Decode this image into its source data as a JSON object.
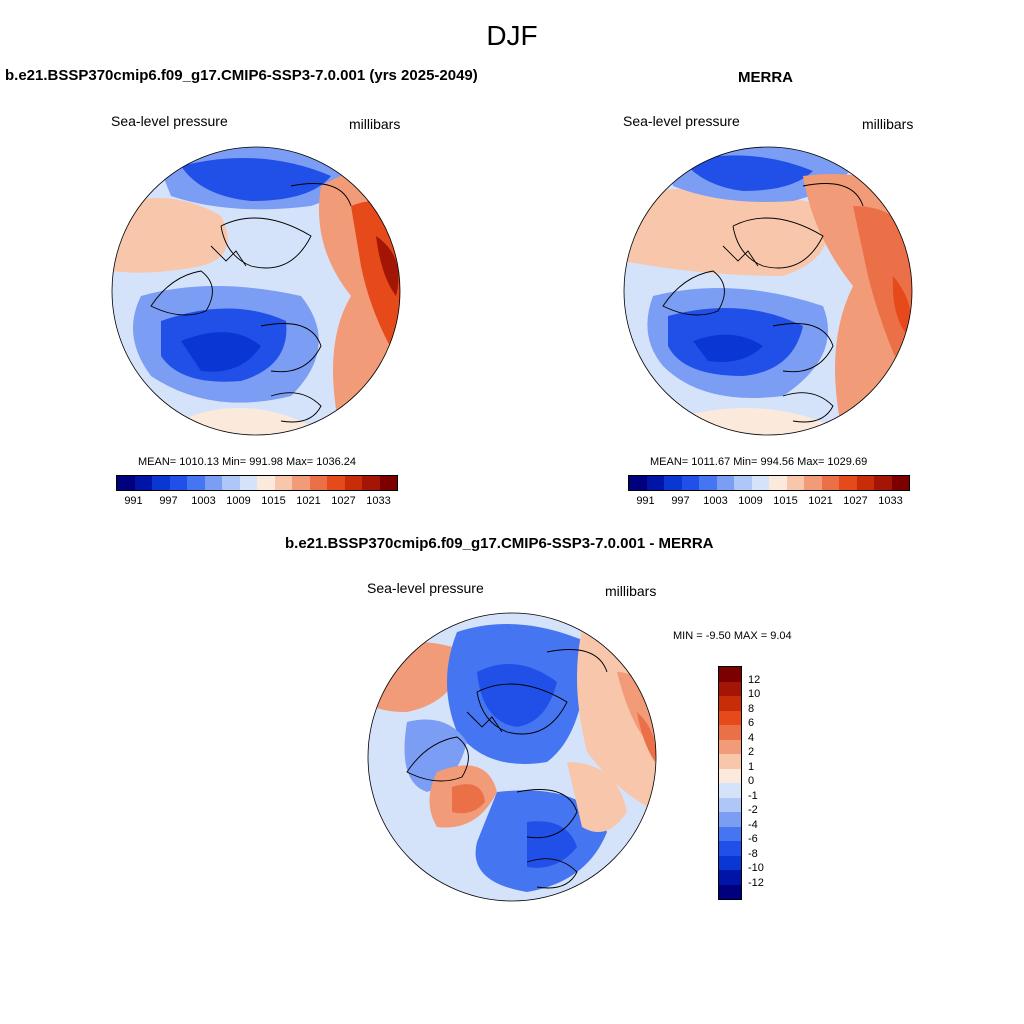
{
  "season": "DJF",
  "panels": {
    "model": {
      "title": "b.e21.BSSP370cmip6.f09_g17.CMIP6-SSP3-7.0.001 (yrs 2025-2049)",
      "left_label": "Sea-level pressure",
      "right_label": "millibars",
      "stats": "MEAN= 1010.13  Min= 991.98  Max= 1036.24"
    },
    "obs": {
      "title": "MERRA",
      "left_label": "Sea-level pressure",
      "right_label": "millibars",
      "stats": "MEAN= 1011.67  Min= 994.56  Max= 1029.69"
    },
    "diff": {
      "title": "b.e21.BSSP370cmip6.f09_g17.CMIP6-SSP3-7.0.001 - MERRA",
      "left_label": "Sea-level pressure",
      "right_label": "millibars",
      "minmax": "MIN =  -9.50 MAX =   9.04"
    }
  },
  "abs_colorbar": {
    "colors": [
      "#00007f",
      "#0015a8",
      "#0a37d4",
      "#2150e8",
      "#4675f2",
      "#7b9df3",
      "#aec6f8",
      "#d5e3fa",
      "#fbe9dc",
      "#f8c6aa",
      "#f19b78",
      "#ec7047",
      "#e64a1b",
      "#c72d09",
      "#a31606",
      "#7c0000"
    ],
    "labels": [
      "991",
      "997",
      "1003",
      "1009",
      "1015",
      "1021",
      "1027",
      "1033"
    ]
  },
  "diff_colorbar": {
    "colors": [
      "#7c0000",
      "#a31606",
      "#c72d09",
      "#e64a1b",
      "#ec7047",
      "#f19b78",
      "#f8c6aa",
      "#fbe9dc",
      "#d5e3fa",
      "#aec6f8",
      "#7b9df3",
      "#4675f2",
      "#2150e8",
      "#0a37d4",
      "#0015a8",
      "#00007f"
    ],
    "labels": [
      "12",
      "10",
      "8",
      "6",
      "4",
      "2",
      "1",
      "0",
      "-1",
      "-2",
      "-4",
      "-6",
      "-8",
      "-10",
      "-12"
    ]
  }
}
